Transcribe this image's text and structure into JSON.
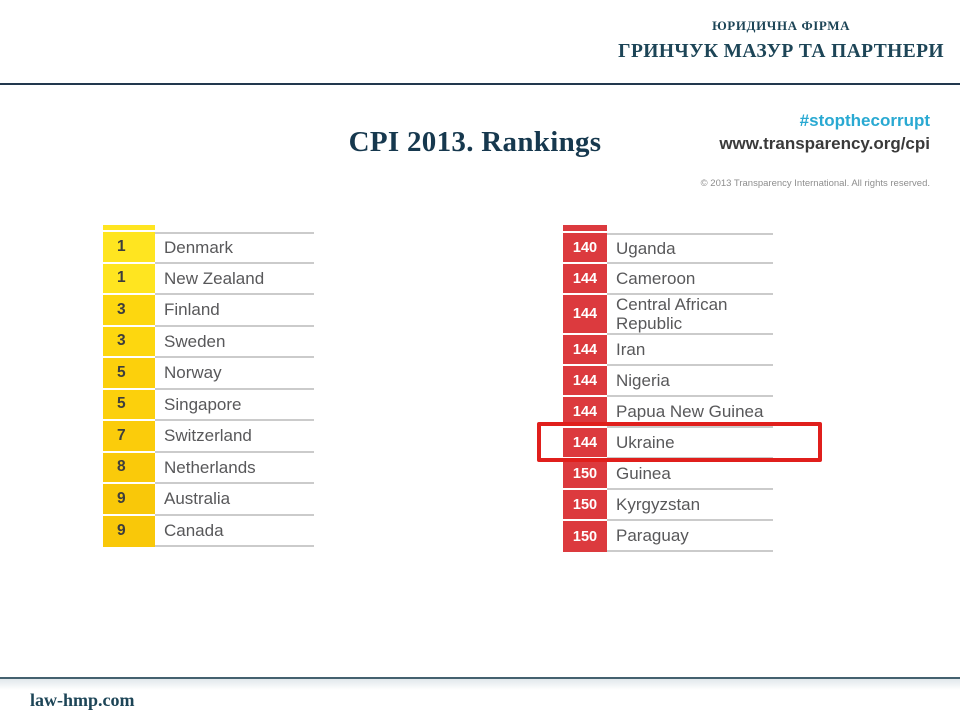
{
  "header": {
    "firm_type": "ЮРИДИЧНА ФІРМА",
    "firm_name": "ГРИНЧУК МАЗУР ТА ПАРТНЕРИ"
  },
  "title": "CPI 2013. Rankings",
  "source": {
    "hashtag": "#stopthecorrupt",
    "url": "www.transparency.org/cpi",
    "copyright": "© 2013 Transparency International. All rights reserved."
  },
  "tables": {
    "top": {
      "rows": [
        {
          "rank": "1",
          "country": "Denmark",
          "cell_color": "#ffe520"
        },
        {
          "rank": "1",
          "country": "New Zealand",
          "cell_color": "#ffe520"
        },
        {
          "rank": "3",
          "country": "Finland",
          "cell_color": "#fdd70f"
        },
        {
          "rank": "3",
          "country": "Sweden",
          "cell_color": "#fdd70f"
        },
        {
          "rank": "5",
          "country": "Norway",
          "cell_color": "#fcd00c"
        },
        {
          "rank": "5",
          "country": "Singapore",
          "cell_color": "#fcd00c"
        },
        {
          "rank": "7",
          "country": "Switzerland",
          "cell_color": "#fbcc0b"
        },
        {
          "rank": "8",
          "country": "Netherlands",
          "cell_color": "#faca0a"
        },
        {
          "rank": "9",
          "country": "Australia",
          "cell_color": "#f9c809"
        },
        {
          "rank": "9",
          "country": "Canada",
          "cell_color": "#f9c809"
        }
      ]
    },
    "bottom": {
      "rows": [
        {
          "rank": "140",
          "country": "Uganda",
          "cell_color": "#dc3a3e"
        },
        {
          "rank": "144",
          "country": "Cameroon",
          "cell_color": "#dc3a3e"
        },
        {
          "rank": "144",
          "country": "Central African Republic",
          "cell_color": "#dc3a3e"
        },
        {
          "rank": "144",
          "country": "Iran",
          "cell_color": "#dc3a3e"
        },
        {
          "rank": "144",
          "country": "Nigeria",
          "cell_color": "#dc3a3e"
        },
        {
          "rank": "144",
          "country": "Papua New Guinea",
          "cell_color": "#dc3a3e"
        },
        {
          "rank": "144",
          "country": "Ukraine",
          "cell_color": "#dc3a3e"
        },
        {
          "rank": "150",
          "country": "Guinea",
          "cell_color": "#dc3a3e"
        },
        {
          "rank": "150",
          "country": "Kyrgyzstan",
          "cell_color": "#dc3a3e"
        },
        {
          "rank": "150",
          "country": "Paraguay",
          "cell_color": "#dc3a3e"
        }
      ],
      "highlight": {
        "country": "Ukraine",
        "border_color": "#e01f1c"
      }
    }
  },
  "footer": {
    "site": "law-hmp.com"
  },
  "colors": {
    "accent_teal": "#1d4557",
    "hashtag_cyan": "#29a9d2",
    "top_cell_yellow": "#ffe520",
    "bottom_cell_red": "#dc3a3e",
    "highlight_red": "#e01f1c",
    "separator_gray": "#cbcbcb"
  }
}
